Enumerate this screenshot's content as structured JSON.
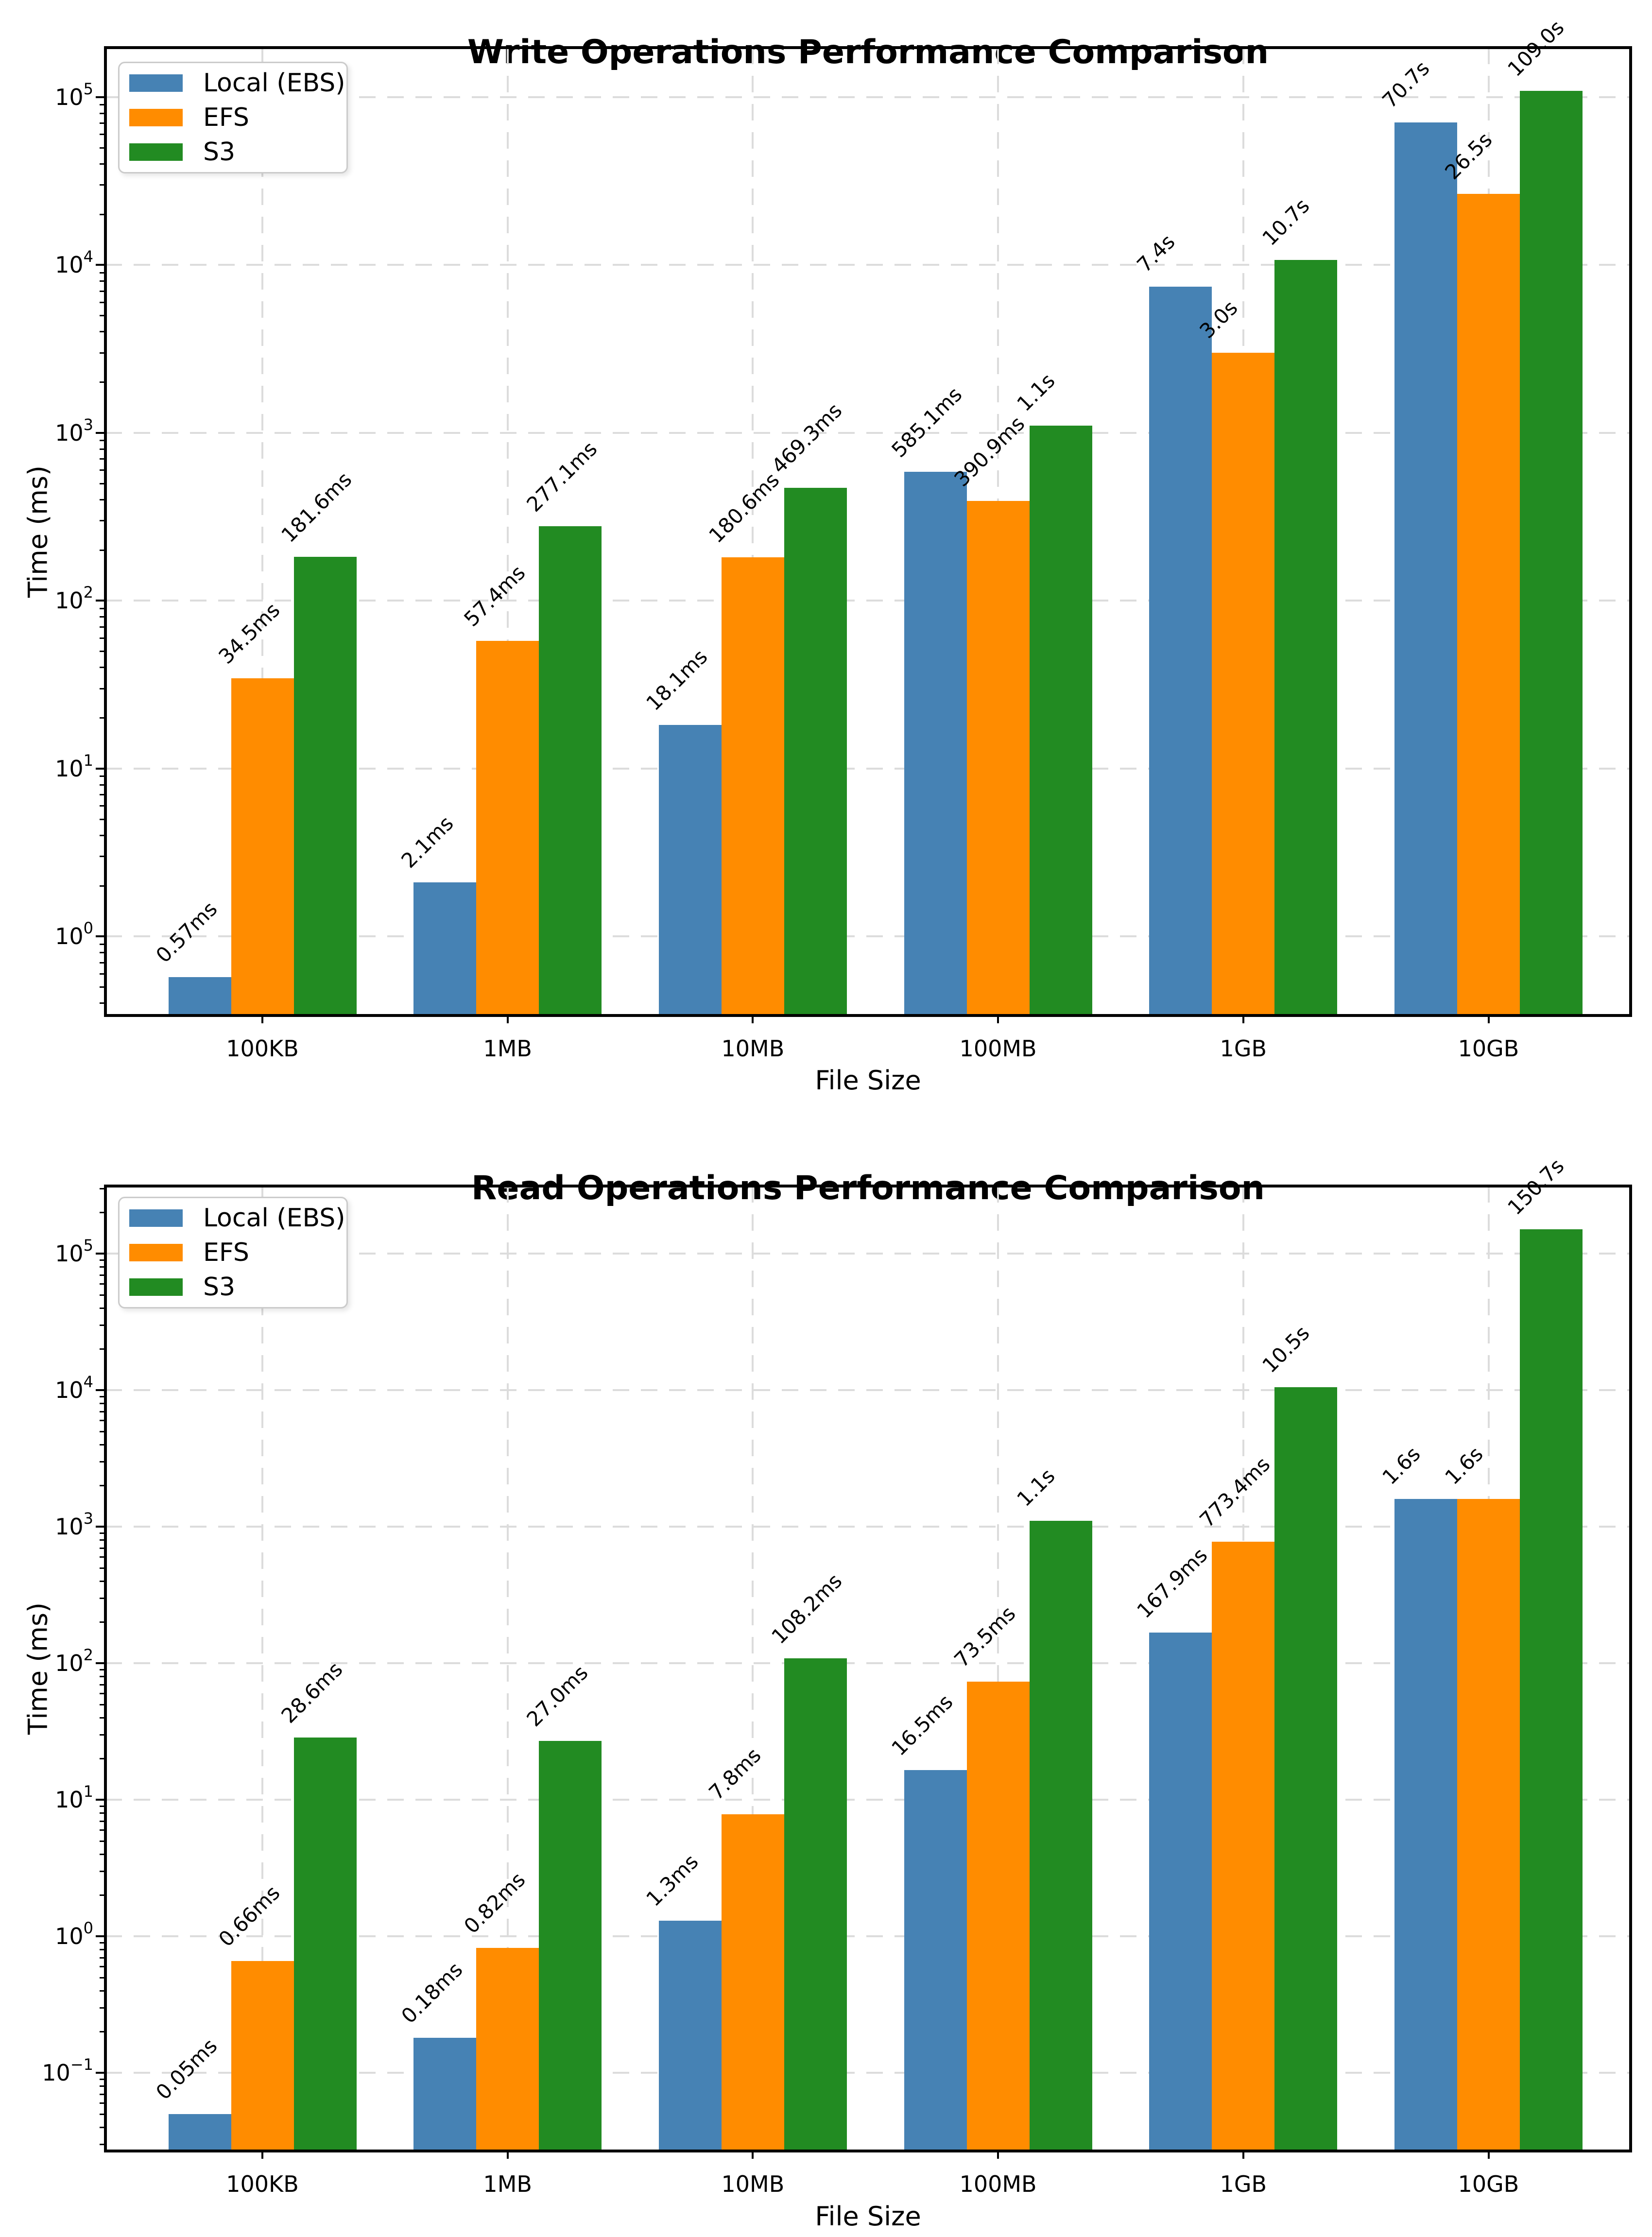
{
  "page": {
    "background": "#FFFFFF"
  },
  "colors": {
    "blue": "#4682B4",
    "orange": "#FF8C00",
    "green": "#228B22",
    "grid": "#DCDCDC",
    "spine": "#000000",
    "text": "#000000",
    "legend_border": "#CBCBCB"
  },
  "legend": {
    "items": [
      {
        "label": "Local (EBS)",
        "color": "blue"
      },
      {
        "label": "EFS",
        "color": "orange"
      },
      {
        "label": "S3",
        "color": "green"
      }
    ]
  },
  "chart_data": [
    {
      "type": "bar",
      "title": "Write Operations Performance Comparison",
      "xlabel": "File Size",
      "ylabel": "Time (ms)",
      "yscale": "log",
      "grid": true,
      "legend_position": "upper left",
      "categories": [
        "100KB",
        "1MB",
        "10MB",
        "100MB",
        "1GB",
        "10GB"
      ],
      "ytick_exponents": [
        0,
        1,
        2,
        3,
        4,
        5
      ],
      "ylim": [
        0.34,
        197000
      ],
      "axis": {
        "bottom_log": -0.4718,
        "top_log": 5.2938
      },
      "series": [
        {
          "name": "Local (EBS)",
          "color": "blue",
          "values": [
            0.57,
            2.1,
            18.1,
            585.1,
            7400,
            70700
          ],
          "labels": [
            "0.57ms",
            "2.1ms",
            "18.1ms",
            "585.1ms",
            "7.4s",
            "70.7s"
          ]
        },
        {
          "name": "EFS",
          "color": "orange",
          "values": [
            34.5,
            57.4,
            180.6,
            390.9,
            3000,
            26500
          ],
          "labels": [
            "34.5ms",
            "57.4ms",
            "180.6ms",
            "390.9ms",
            "3.0s",
            "26.5s"
          ]
        },
        {
          "name": "S3",
          "color": "green",
          "values": [
            181.6,
            277.1,
            469.3,
            1100,
            10700,
            109000
          ],
          "labels": [
            "181.6ms",
            "277.1ms",
            "469.3ms",
            "1.1s",
            "10.7s",
            "109.0s"
          ]
        }
      ]
    },
    {
      "type": "bar",
      "title": "Read Operations Performance Comparison",
      "xlabel": "File Size",
      "ylabel": "Time (ms)",
      "yscale": "log",
      "grid": true,
      "legend_position": "upper left",
      "categories": [
        "100KB",
        "1MB",
        "10MB",
        "100MB",
        "1GB",
        "10GB"
      ],
      "ytick_exponents": [
        -1,
        0,
        1,
        2,
        3,
        4,
        5
      ],
      "ylim": [
        0.027,
        312000
      ],
      "axis": {
        "bottom_log": -1.573,
        "top_log": 5.494
      },
      "series": [
        {
          "name": "Local (EBS)",
          "color": "blue",
          "values": [
            0.05,
            0.18,
            1.3,
            16.5,
            167.9,
            1600
          ],
          "labels": [
            "0.05ms",
            "0.18ms",
            "1.3ms",
            "16.5ms",
            "167.9ms",
            "1.6s"
          ]
        },
        {
          "name": "EFS",
          "color": "orange",
          "values": [
            0.66,
            0.82,
            7.8,
            73.5,
            773.4,
            1600
          ],
          "labels": [
            "0.66ms",
            "0.82ms",
            "7.8ms",
            "73.5ms",
            "773.4ms",
            "1.6s"
          ]
        },
        {
          "name": "S3",
          "color": "green",
          "values": [
            28.6,
            27.0,
            108.2,
            1100,
            10500,
            150700
          ],
          "labels": [
            "28.6ms",
            "27.0ms",
            "108.2ms",
            "1.1s",
            "10.5s",
            "150.7s"
          ]
        }
      ]
    }
  ]
}
